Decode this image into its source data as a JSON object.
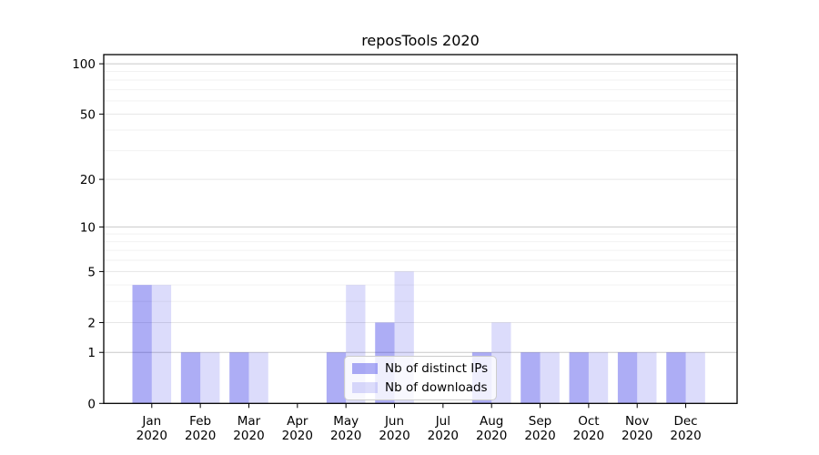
{
  "chart_data": {
    "type": "bar",
    "title": "reposTools 2020",
    "categories": [
      "Jan 2020",
      "Feb 2020",
      "Mar 2020",
      "Apr 2020",
      "May 2020",
      "Jun 2020",
      "Jul 2020",
      "Aug 2020",
      "Sep 2020",
      "Oct 2020",
      "Nov 2020",
      "Dec 2020"
    ],
    "series": [
      {
        "name": "Nb of distinct IPs",
        "color": "rgba(20,20,225,0.35)",
        "values": [
          4,
          1,
          1,
          0,
          1,
          2,
          0,
          1,
          1,
          1,
          1,
          1
        ]
      },
      {
        "name": "Nb of downloads",
        "color": "rgba(20,20,225,0.15)",
        "values": [
          4,
          1,
          1,
          0,
          4,
          5,
          0,
          2,
          1,
          1,
          1,
          1
        ]
      }
    ],
    "yscale": "log1p",
    "ylim": [
      0,
      113
    ],
    "yticks": [
      0,
      1,
      2,
      5,
      10,
      20,
      50,
      100
    ],
    "yticks_emphasis": [
      1,
      10,
      100
    ],
    "minor_yticks": [
      3,
      4,
      6,
      7,
      8,
      9,
      30,
      40,
      60,
      70,
      80,
      90
    ],
    "grid": true,
    "legend_position": "lower center",
    "colors": {
      "grid_emphasis": "#c9c9c9",
      "grid_light": "#e6e6e6",
      "grid_minor": "#f2f2f2",
      "axis": "#000000",
      "background": "#ffffff"
    }
  }
}
